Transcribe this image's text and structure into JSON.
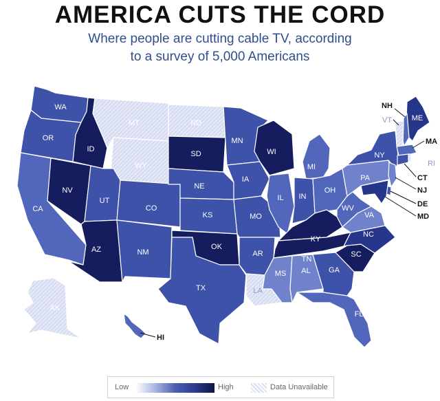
{
  "title": "AMERICA CUTS THE CORD",
  "subtitle_line1": "Where people are cutting cable TV, according",
  "subtitle_line2": "to a survey of 5,000 Americans",
  "legend": {
    "low": "Low",
    "high": "High",
    "unavailable": "Data Unavailable"
  },
  "colors": {
    "level1": "#6f82cb",
    "level2": "#5267bb",
    "level3": "#3d52a8",
    "level4": "#26368a",
    "level5": "#151d5e",
    "unavailable": "#d9def2"
  },
  "states": [
    {
      "code": "WA",
      "level": 3
    },
    {
      "code": "OR",
      "level": 3
    },
    {
      "code": "CA",
      "level": 2
    },
    {
      "code": "ID",
      "level": 5
    },
    {
      "code": "NV",
      "level": 5
    },
    {
      "code": "MT",
      "level": 0
    },
    {
      "code": "WY",
      "level": 0
    },
    {
      "code": "UT",
      "level": 3
    },
    {
      "code": "AZ",
      "level": 5
    },
    {
      "code": "CO",
      "level": 3
    },
    {
      "code": "NM",
      "level": 3
    },
    {
      "code": "ND",
      "level": 0
    },
    {
      "code": "SD",
      "level": 5
    },
    {
      "code": "NE",
      "level": 3
    },
    {
      "code": "KS",
      "level": 3
    },
    {
      "code": "OK",
      "level": 5
    },
    {
      "code": "TX",
      "level": 3
    },
    {
      "code": "MN",
      "level": 3
    },
    {
      "code": "IA",
      "level": 3
    },
    {
      "code": "MO",
      "level": 3
    },
    {
      "code": "AR",
      "level": 3
    },
    {
      "code": "LA",
      "level": 0
    },
    {
      "code": "WI",
      "level": 5
    },
    {
      "code": "IL",
      "level": 2
    },
    {
      "code": "MI",
      "level": 2
    },
    {
      "code": "IN",
      "level": 3
    },
    {
      "code": "OH",
      "level": 2
    },
    {
      "code": "KY",
      "level": 5
    },
    {
      "code": "TN",
      "level": 5
    },
    {
      "code": "MS",
      "level": 1
    },
    {
      "code": "AL",
      "level": 1
    },
    {
      "code": "GA",
      "level": 3
    },
    {
      "code": "FL",
      "level": 2
    },
    {
      "code": "SC",
      "level": 5
    },
    {
      "code": "NC",
      "level": 4
    },
    {
      "code": "VA",
      "level": 1
    },
    {
      "code": "WV",
      "level": 2
    },
    {
      "code": "PA",
      "level": 1
    },
    {
      "code": "NY",
      "level": 3
    },
    {
      "code": "ME",
      "level": 4
    },
    {
      "code": "NH",
      "level": 2
    },
    {
      "code": "VT",
      "level": 0
    },
    {
      "code": "MA",
      "level": 2
    },
    {
      "code": "RI",
      "level": 0
    },
    {
      "code": "CT",
      "level": 3
    },
    {
      "code": "NJ",
      "level": 1
    },
    {
      "code": "DE",
      "level": 3
    },
    {
      "code": "MD",
      "level": 4
    },
    {
      "code": "AK",
      "level": 0
    },
    {
      "code": "HI",
      "level": 2
    }
  ]
}
